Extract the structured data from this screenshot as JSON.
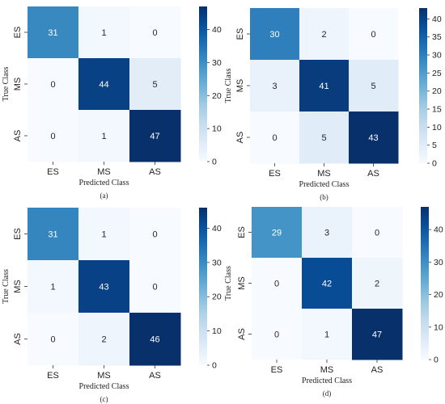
{
  "chart_data": [
    {
      "type": "heatmap",
      "caption": "(a)",
      "xlabel": "Predicted Class",
      "ylabel": "True Class",
      "x_categories": [
        "ES",
        "MS",
        "AS"
      ],
      "y_categories": [
        "ES",
        "MS",
        "AS"
      ],
      "values": [
        [
          31,
          1,
          0
        ],
        [
          0,
          44,
          5
        ],
        [
          0,
          1,
          47
        ]
      ],
      "colorbar": {
        "min": 0,
        "max": 47,
        "ticks": [
          0,
          10,
          20,
          30,
          40
        ]
      },
      "colormap": "Blues"
    },
    {
      "type": "heatmap",
      "caption": "(b)",
      "xlabel": "Predicted Class",
      "ylabel": "True Class",
      "x_categories": [
        "ES",
        "MS",
        "AS"
      ],
      "y_categories": [
        "ES",
        "MS",
        "AS"
      ],
      "values": [
        [
          30,
          2,
          0
        ],
        [
          3,
          41,
          5
        ],
        [
          0,
          5,
          43
        ]
      ],
      "colorbar": {
        "min": 0,
        "max": 43,
        "ticks": [
          0,
          5,
          10,
          15,
          20,
          25,
          30,
          35,
          40
        ]
      },
      "colormap": "Blues"
    },
    {
      "type": "heatmap",
      "caption": "(c)",
      "xlabel": "Predicted Class",
      "ylabel": "True Class",
      "x_categories": [
        "ES",
        "MS",
        "AS"
      ],
      "y_categories": [
        "ES",
        "MS",
        "AS"
      ],
      "values": [
        [
          31,
          1,
          0
        ],
        [
          1,
          43,
          0
        ],
        [
          0,
          2,
          46
        ]
      ],
      "colorbar": {
        "min": 0,
        "max": 46,
        "ticks": [
          0,
          10,
          20,
          30,
          40
        ]
      },
      "colormap": "Blues"
    },
    {
      "type": "heatmap",
      "caption": "(d)",
      "xlabel": "Predicted Class",
      "ylabel": "True Class",
      "x_categories": [
        "ES",
        "MS",
        "AS"
      ],
      "y_categories": [
        "ES",
        "MS",
        "AS"
      ],
      "values": [
        [
          29,
          3,
          0
        ],
        [
          0,
          42,
          2
        ],
        [
          0,
          1,
          47
        ]
      ],
      "colorbar": {
        "min": 0,
        "max": 47,
        "ticks": [
          0,
          10,
          20,
          30,
          40
        ]
      },
      "colormap": "Blues"
    }
  ]
}
